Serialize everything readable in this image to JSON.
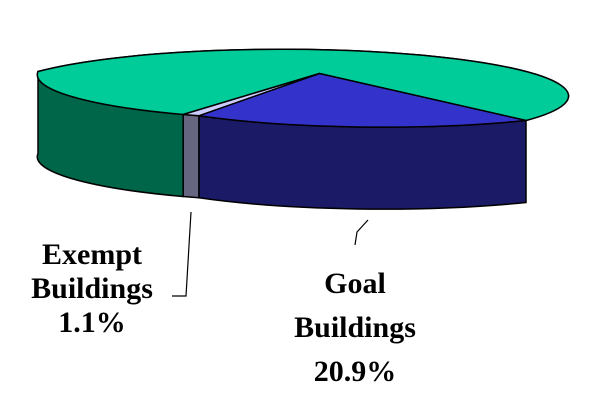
{
  "chart_data": {
    "type": "pie",
    "style": "3d",
    "title": "",
    "slices": [
      {
        "label_lines": [
          "Goal",
          "Buildings",
          "20.9%"
        ],
        "value": 20.9,
        "color_top": "#3333cc",
        "color_side": "#1a1a66"
      },
      {
        "label_lines": [
          "Exempt",
          "Buildings",
          "1.1%"
        ],
        "value": 1.1,
        "color_top": "#ccccff",
        "color_side": "#666680"
      },
      {
        "label_lines": [],
        "value": 78.0,
        "color_top": "#00cc99",
        "color_side": "#006649"
      }
    ]
  }
}
